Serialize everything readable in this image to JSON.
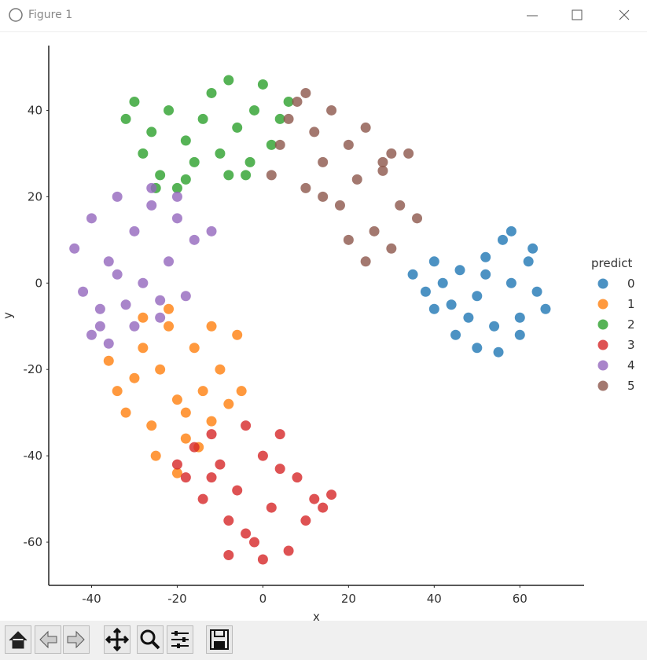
{
  "window": {
    "title": "Figure 1"
  },
  "chart_data": {
    "type": "scatter",
    "xlabel": "x",
    "ylabel": "y",
    "xlim": [
      -50,
      75
    ],
    "ylim": [
      -70,
      55
    ],
    "xticks": [
      -40,
      -20,
      0,
      20,
      40,
      60
    ],
    "yticks": [
      -60,
      -40,
      -20,
      0,
      20,
      40
    ],
    "grid": false,
    "legend_title": "predict",
    "legend": "right",
    "series": [
      {
        "name": "0",
        "color": "#1f77b4",
        "x": [
          35,
          38,
          40,
          42,
          44,
          46,
          48,
          50,
          52,
          54,
          56,
          58,
          60,
          62,
          64,
          66,
          45,
          50,
          55,
          58,
          60,
          63,
          40,
          52
        ],
        "values": [
          2,
          -2,
          5,
          0,
          -5,
          3,
          -8,
          -3,
          6,
          -10,
          10,
          12,
          -12,
          5,
          -2,
          -6,
          -12,
          -15,
          -16,
          0,
          -8,
          8,
          -6,
          2
        ]
      },
      {
        "name": "1",
        "color": "#ff7f0e",
        "x": [
          -36,
          -34,
          -32,
          -30,
          -28,
          -26,
          -24,
          -22,
          -20,
          -18,
          -16,
          -14,
          -12,
          -10,
          -8,
          -6,
          -25,
          -20,
          -15,
          -28,
          -22,
          -18,
          -12,
          -5
        ],
        "values": [
          -18,
          -25,
          -30,
          -22,
          -15,
          -33,
          -20,
          -10,
          -27,
          -36,
          -15,
          -25,
          -32,
          -20,
          -28,
          -12,
          -40,
          -44,
          -38,
          -8,
          -6,
          -30,
          -10,
          -25
        ]
      },
      {
        "name": "2",
        "color": "#2ca02c",
        "x": [
          -32,
          -30,
          -28,
          -26,
          -24,
          -22,
          -20,
          -18,
          -16,
          -14,
          -12,
          -10,
          -8,
          -6,
          -4,
          -2,
          0,
          2,
          4,
          6,
          -25,
          -18,
          -8,
          -3
        ],
        "values": [
          38,
          42,
          30,
          35,
          25,
          40,
          22,
          33,
          28,
          38,
          44,
          30,
          47,
          36,
          25,
          40,
          46,
          32,
          38,
          42,
          22,
          24,
          25,
          28
        ]
      },
      {
        "name": "3",
        "color": "#d62728",
        "x": [
          -20,
          -18,
          -16,
          -14,
          -12,
          -10,
          -8,
          -6,
          -4,
          -2,
          0,
          2,
          4,
          6,
          8,
          10,
          12,
          14,
          16,
          -8,
          -4,
          0,
          -12,
          4
        ],
        "values": [
          -42,
          -45,
          -38,
          -50,
          -35,
          -42,
          -55,
          -48,
          -33,
          -60,
          -40,
          -52,
          -35,
          -62,
          -45,
          -55,
          -50,
          -52,
          -49,
          -63,
          -58,
          -64,
          -45,
          -43
        ]
      },
      {
        "name": "4",
        "color": "#9467bd",
        "x": [
          -44,
          -42,
          -40,
          -38,
          -36,
          -34,
          -32,
          -30,
          -28,
          -26,
          -24,
          -22,
          -20,
          -18,
          -16,
          -40,
          -36,
          -30,
          -26,
          -34,
          -38,
          -24,
          -20,
          -12
        ],
        "values": [
          8,
          -2,
          15,
          -10,
          5,
          20,
          -5,
          12,
          0,
          18,
          -8,
          5,
          15,
          -3,
          10,
          -12,
          -14,
          -10,
          22,
          2,
          -6,
          -4,
          20,
          12
        ]
      },
      {
        "name": "5",
        "color": "#8c564b",
        "x": [
          2,
          4,
          6,
          8,
          10,
          12,
          14,
          16,
          18,
          20,
          22,
          24,
          26,
          28,
          30,
          32,
          34,
          36,
          20,
          24,
          28,
          14,
          10,
          30
        ],
        "values": [
          25,
          32,
          38,
          42,
          22,
          35,
          28,
          40,
          18,
          32,
          24,
          36,
          12,
          26,
          8,
          18,
          30,
          15,
          10,
          5,
          28,
          20,
          44,
          30
        ]
      }
    ]
  }
}
